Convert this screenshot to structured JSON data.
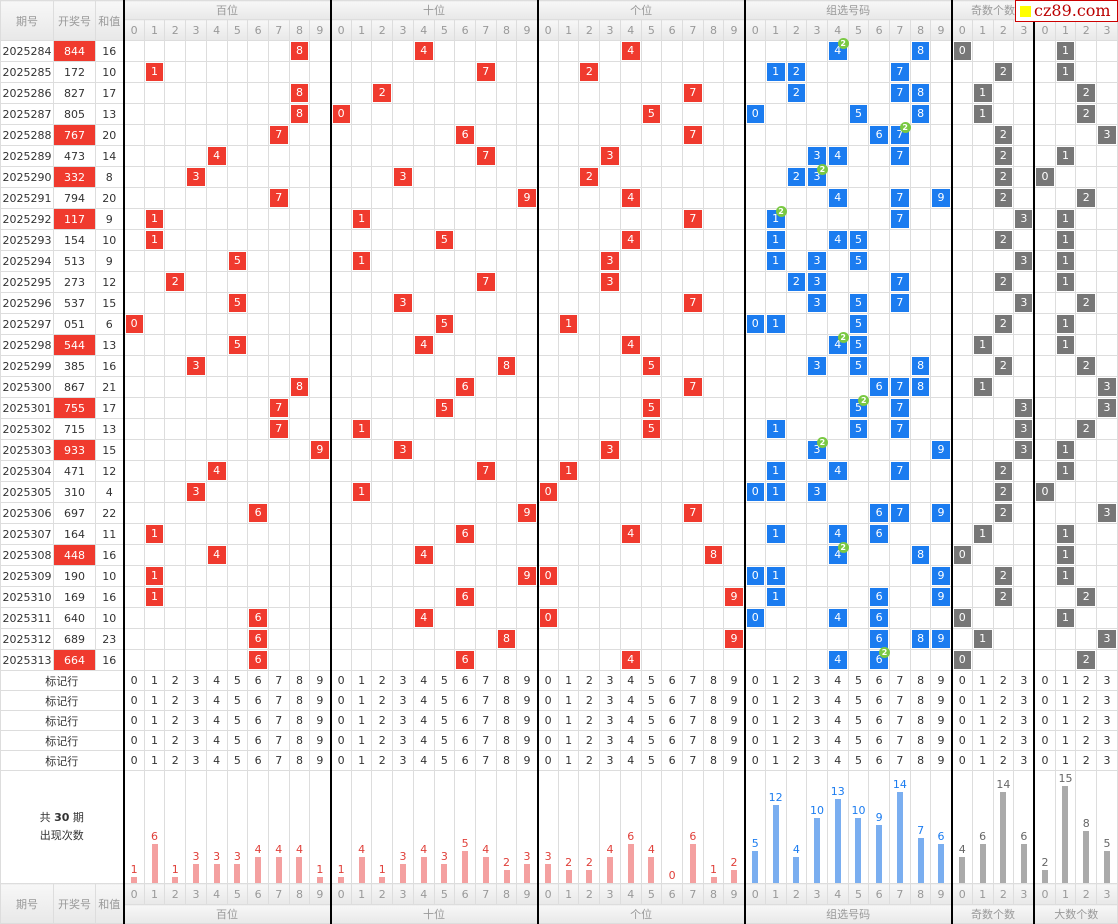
{
  "headers": {
    "period": "期号",
    "number": "开奖号",
    "sum": "和值",
    "groups": [
      "百位",
      "十位",
      "个位",
      "组选号码",
      "奇数个数",
      "大数个数"
    ]
  },
  "watermark": "cz89.com",
  "draws": [
    [
      "2025284",
      "844",
      "16"
    ],
    [
      "2025285",
      "172",
      "10"
    ],
    [
      "2025286",
      "827",
      "17"
    ],
    [
      "2025287",
      "805",
      "13"
    ],
    [
      "2025288",
      "767",
      "20"
    ],
    [
      "2025289",
      "473",
      "14"
    ],
    [
      "2025290",
      "332",
      "8"
    ],
    [
      "2025291",
      "794",
      "20"
    ],
    [
      "2025292",
      "117",
      "9"
    ],
    [
      "2025293",
      "154",
      "10"
    ],
    [
      "2025294",
      "513",
      "9"
    ],
    [
      "2025295",
      "273",
      "12"
    ],
    [
      "2025296",
      "537",
      "15"
    ],
    [
      "2025297",
      "051",
      "6"
    ],
    [
      "2025298",
      "544",
      "13"
    ],
    [
      "2025299",
      "385",
      "16"
    ],
    [
      "2025300",
      "867",
      "21"
    ],
    [
      "2025301",
      "755",
      "17"
    ],
    [
      "2025302",
      "715",
      "13"
    ],
    [
      "2025303",
      "933",
      "15"
    ],
    [
      "2025304",
      "471",
      "12"
    ],
    [
      "2025305",
      "310",
      "4"
    ],
    [
      "2025306",
      "697",
      "22"
    ],
    [
      "2025307",
      "164",
      "11"
    ],
    [
      "2025308",
      "448",
      "16"
    ],
    [
      "2025309",
      "190",
      "10"
    ],
    [
      "2025310",
      "169",
      "16"
    ],
    [
      "2025311",
      "640",
      "10"
    ],
    [
      "2025312",
      "689",
      "23"
    ],
    [
      "2025313",
      "664",
      "16"
    ]
  ],
  "mark_label": "标记行",
  "stats": {
    "line1_pre": "共 ",
    "line1_num": "30",
    "line1_post": " 期",
    "line2": "出现次数",
    "hundreds": [
      1,
      6,
      1,
      3,
      3,
      3,
      4,
      4,
      4,
      1
    ],
    "tens": [
      1,
      4,
      1,
      3,
      4,
      3,
      5,
      4,
      2,
      3
    ],
    "units": [
      3,
      2,
      2,
      4,
      6,
      4,
      0,
      6,
      1,
      2
    ],
    "group": [
      5,
      12,
      4,
      10,
      13,
      10,
      9,
      14,
      7,
      6
    ],
    "odd": [
      4,
      6,
      14,
      6
    ],
    "big": [
      2,
      15,
      8,
      5
    ]
  },
  "colors": {
    "red": "#f03a2e",
    "blue": "#1b7cf0",
    "gray": "#777",
    "bar_red": "#f4a0a0",
    "bar_blue": "#7aaef0",
    "bar_gray": "#aaa"
  }
}
